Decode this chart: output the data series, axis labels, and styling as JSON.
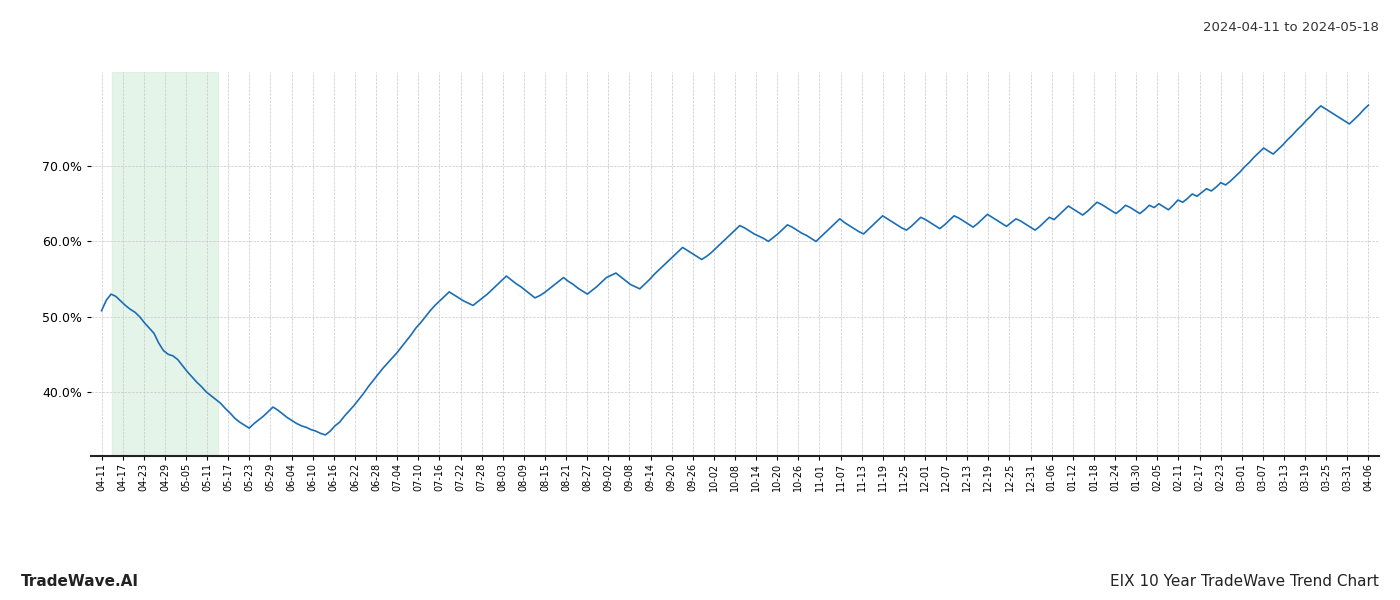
{
  "title_right": "2024-04-11 to 2024-05-18",
  "footer_left": "TradeWave.AI",
  "footer_right": "EIX 10 Year TradeWave Trend Chart",
  "line_color": "#1a6eb5",
  "line_width": 1.2,
  "shade_color": "#d4edda",
  "shade_alpha": 0.6,
  "background_color": "#ffffff",
  "grid_color": "#c8c8c8",
  "grid_style": "--",
  "yticks": [
    0.4,
    0.5,
    0.6,
    0.7
  ],
  "ymin": 0.315,
  "ymax": 0.825,
  "shade_start_label": "04-17",
  "shade_end_label": "05-11",
  "tick_labels": [
    "04-11",
    "04-17",
    "04-23",
    "04-29",
    "05-05",
    "05-11",
    "05-17",
    "05-23",
    "05-29",
    "06-04",
    "06-10",
    "06-16",
    "06-22",
    "06-28",
    "07-04",
    "07-10",
    "07-16",
    "07-22",
    "07-28",
    "08-03",
    "08-09",
    "08-15",
    "08-21",
    "08-27",
    "09-02",
    "09-08",
    "09-14",
    "09-20",
    "09-26",
    "10-02",
    "10-08",
    "10-14",
    "10-20",
    "10-26",
    "11-01",
    "11-07",
    "11-13",
    "11-19",
    "11-25",
    "12-01",
    "12-07",
    "12-13",
    "12-19",
    "12-25",
    "12-31",
    "01-06",
    "01-12",
    "01-18",
    "01-24",
    "01-30",
    "02-05",
    "02-11",
    "02-17",
    "02-23",
    "03-01",
    "03-07",
    "03-13",
    "03-19",
    "03-25",
    "03-31",
    "04-06"
  ],
  "values": [
    0.508,
    0.522,
    0.53,
    0.527,
    0.521,
    0.515,
    0.51,
    0.506,
    0.5,
    0.492,
    0.485,
    0.478,
    0.465,
    0.455,
    0.45,
    0.448,
    0.443,
    0.435,
    0.427,
    0.42,
    0.413,
    0.407,
    0.4,
    0.395,
    0.39,
    0.385,
    0.378,
    0.372,
    0.365,
    0.36,
    0.356,
    0.352,
    0.358,
    0.363,
    0.368,
    0.374,
    0.38,
    0.376,
    0.371,
    0.366,
    0.362,
    0.358,
    0.355,
    0.353,
    0.35,
    0.348,
    0.345,
    0.343,
    0.348,
    0.355,
    0.36,
    0.368,
    0.375,
    0.382,
    0.39,
    0.398,
    0.407,
    0.415,
    0.423,
    0.431,
    0.438,
    0.445,
    0.452,
    0.46,
    0.468,
    0.476,
    0.485,
    0.492,
    0.5,
    0.508,
    0.515,
    0.521,
    0.527,
    0.533,
    0.529,
    0.525,
    0.521,
    0.518,
    0.515,
    0.52,
    0.525,
    0.53,
    0.536,
    0.542,
    0.548,
    0.554,
    0.549,
    0.544,
    0.54,
    0.535,
    0.53,
    0.525,
    0.528,
    0.532,
    0.537,
    0.542,
    0.547,
    0.552,
    0.547,
    0.543,
    0.538,
    0.534,
    0.53,
    0.535,
    0.54,
    0.546,
    0.552,
    0.555,
    0.558,
    0.553,
    0.548,
    0.543,
    0.54,
    0.537,
    0.543,
    0.549,
    0.556,
    0.562,
    0.568,
    0.574,
    0.58,
    0.586,
    0.592,
    0.588,
    0.584,
    0.58,
    0.576,
    0.58,
    0.585,
    0.591,
    0.597,
    0.603,
    0.609,
    0.615,
    0.621,
    0.618,
    0.614,
    0.61,
    0.607,
    0.604,
    0.6,
    0.605,
    0.61,
    0.616,
    0.622,
    0.619,
    0.615,
    0.611,
    0.608,
    0.604,
    0.6,
    0.606,
    0.612,
    0.618,
    0.624,
    0.63,
    0.625,
    0.621,
    0.617,
    0.613,
    0.61,
    0.616,
    0.622,
    0.628,
    0.634,
    0.63,
    0.626,
    0.622,
    0.618,
    0.615,
    0.62,
    0.626,
    0.632,
    0.629,
    0.625,
    0.621,
    0.617,
    0.622,
    0.628,
    0.634,
    0.631,
    0.627,
    0.623,
    0.619,
    0.624,
    0.63,
    0.636,
    0.632,
    0.628,
    0.624,
    0.62,
    0.625,
    0.63,
    0.627,
    0.623,
    0.619,
    0.615,
    0.62,
    0.626,
    0.632,
    0.629,
    0.635,
    0.641,
    0.647,
    0.643,
    0.639,
    0.635,
    0.64,
    0.646,
    0.652,
    0.649,
    0.645,
    0.641,
    0.637,
    0.642,
    0.648,
    0.645,
    0.641,
    0.637,
    0.642,
    0.648,
    0.645,
    0.65,
    0.646,
    0.642,
    0.648,
    0.655,
    0.652,
    0.657,
    0.663,
    0.66,
    0.665,
    0.67,
    0.667,
    0.672,
    0.678,
    0.675,
    0.68,
    0.686,
    0.692,
    0.699,
    0.705,
    0.712,
    0.718,
    0.724,
    0.72,
    0.716,
    0.722,
    0.728,
    0.735,
    0.741,
    0.748,
    0.754,
    0.761,
    0.767,
    0.774,
    0.78,
    0.776,
    0.772,
    0.768,
    0.764,
    0.76,
    0.756,
    0.762,
    0.768,
    0.775,
    0.781
  ]
}
